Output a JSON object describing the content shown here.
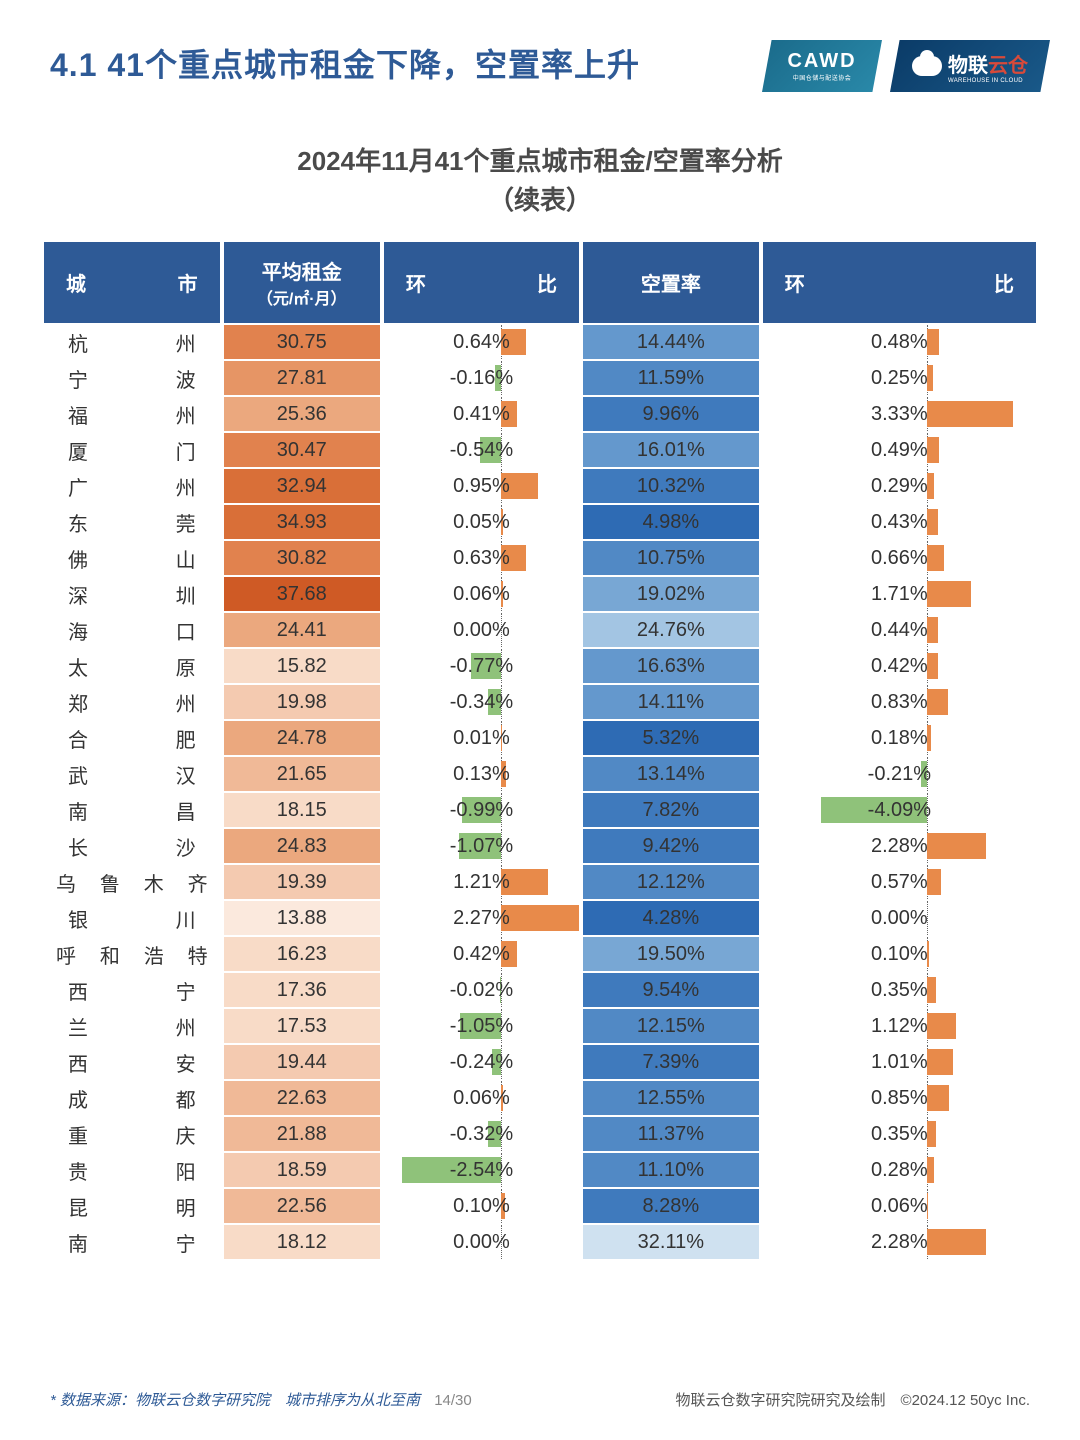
{
  "header": {
    "title": "4.1 41个重点城市租金下降，空置率上升",
    "logo_cawd": "CAWD",
    "logo_cawd_sub": "中国仓储与配送协会",
    "logo_wlyc_a": "物联",
    "logo_wlyc_b": "云仓",
    "logo_wlyc_sub": "WAREHOUSE IN CLOUD"
  },
  "subtitle_line1": "2024年11月41个重点城市租金/空置率分析",
  "subtitle_line2": "（续表）",
  "columns": {
    "city_a": "城",
    "city_b": "市",
    "rent": "平均租金",
    "rent_unit": "（元/㎡·月）",
    "mom_a": "环",
    "mom_b": "比",
    "vacancy": "空置率"
  },
  "styling": {
    "header_bg": "#2e5a96",
    "header_fg": "#ffffff",
    "text_color": "#333333",
    "bar_pos_color": "#e88a4a",
    "bar_neg_color": "#8fc27a",
    "rent_scale": {
      "min": 13,
      "max": 38
    },
    "vacancy_scale": {
      "min": 4,
      "max": 33
    },
    "rent_palette": [
      "#fbe9dd",
      "#f8dbc7",
      "#f4cab0",
      "#f0b997",
      "#eba87e",
      "#e69565",
      "#e1824e",
      "#d96f38",
      "#cf5a25"
    ],
    "vacancy_palette": [
      "#cfe1f0",
      "#b9d3ea",
      "#a3c5e3",
      "#8db6dc",
      "#78a7d4",
      "#6498cd",
      "#5189c5",
      "#3f7abd",
      "#2e6bb4"
    ],
    "mom1_zero_pct": 60,
    "mom1_bar_unit_pct": 20,
    "mom2_zero_pct": 60,
    "mom2_bar_unit_pct": 9.5
  },
  "rows": [
    {
      "city": "杭州",
      "rent": 30.75,
      "mom1": 0.64,
      "vacancy": 14.44,
      "mom2": 0.48
    },
    {
      "city": "宁波",
      "rent": 27.81,
      "mom1": -0.16,
      "vacancy": 11.59,
      "mom2": 0.25
    },
    {
      "city": "福州",
      "rent": 25.36,
      "mom1": 0.41,
      "vacancy": 9.96,
      "mom2": 3.33
    },
    {
      "city": "厦门",
      "rent": 30.47,
      "mom1": -0.54,
      "vacancy": 16.01,
      "mom2": 0.49
    },
    {
      "city": "广州",
      "rent": 32.94,
      "mom1": 0.95,
      "vacancy": 10.32,
      "mom2": 0.29
    },
    {
      "city": "东莞",
      "rent": 34.93,
      "mom1": 0.05,
      "vacancy": 4.98,
      "mom2": 0.43
    },
    {
      "city": "佛山",
      "rent": 30.82,
      "mom1": 0.63,
      "vacancy": 10.75,
      "mom2": 0.66
    },
    {
      "city": "深圳",
      "rent": 37.68,
      "mom1": 0.06,
      "vacancy": 19.02,
      "mom2": 1.71
    },
    {
      "city": "海口",
      "rent": 24.41,
      "mom1": 0.0,
      "vacancy": 24.76,
      "mom2": 0.44
    },
    {
      "city": "太原",
      "rent": 15.82,
      "mom1": -0.77,
      "vacancy": 16.63,
      "mom2": 0.42
    },
    {
      "city": "郑州",
      "rent": 19.98,
      "mom1": -0.34,
      "vacancy": 14.11,
      "mom2": 0.83
    },
    {
      "city": "合肥",
      "rent": 24.78,
      "mom1": 0.01,
      "vacancy": 5.32,
      "mom2": 0.18
    },
    {
      "city": "武汉",
      "rent": 21.65,
      "mom1": 0.13,
      "vacancy": 13.14,
      "mom2": -0.21
    },
    {
      "city": "南昌",
      "rent": 18.15,
      "mom1": -0.99,
      "vacancy": 7.82,
      "mom2": -4.09
    },
    {
      "city": "长沙",
      "rent": 24.83,
      "mom1": -1.07,
      "vacancy": 9.42,
      "mom2": 2.28
    },
    {
      "city": "乌鲁木齐",
      "rent": 19.39,
      "mom1": 1.21,
      "vacancy": 12.12,
      "mom2": 0.57
    },
    {
      "city": "银川",
      "rent": 13.88,
      "mom1": 2.27,
      "vacancy": 4.28,
      "mom2": 0.0
    },
    {
      "city": "呼和浩特",
      "rent": 16.23,
      "mom1": 0.42,
      "vacancy": 19.5,
      "mom2": 0.1
    },
    {
      "city": "西宁",
      "rent": 17.36,
      "mom1": -0.02,
      "vacancy": 9.54,
      "mom2": 0.35
    },
    {
      "city": "兰州",
      "rent": 17.53,
      "mom1": -1.05,
      "vacancy": 12.15,
      "mom2": 1.12
    },
    {
      "city": "西安",
      "rent": 19.44,
      "mom1": -0.24,
      "vacancy": 7.39,
      "mom2": 1.01
    },
    {
      "city": "成都",
      "rent": 22.63,
      "mom1": 0.06,
      "vacancy": 12.55,
      "mom2": 0.85
    },
    {
      "city": "重庆",
      "rent": 21.88,
      "mom1": -0.32,
      "vacancy": 11.37,
      "mom2": 0.35
    },
    {
      "city": "贵阳",
      "rent": 18.59,
      "mom1": -2.54,
      "vacancy": 11.1,
      "mom2": 0.28
    },
    {
      "city": "昆明",
      "rent": 22.56,
      "mom1": 0.1,
      "vacancy": 8.28,
      "mom2": 0.06
    },
    {
      "city": "南宁",
      "rent": 18.12,
      "mom1": 0.0,
      "vacancy": 32.11,
      "mom2": 2.28
    }
  ],
  "footer": {
    "source": "* 数据来源：物联云仓数字研究院　城市排序为从北至南",
    "page": "14/30",
    "credit": "物联云仓数字研究院研究及绘制　©2024.12 50yc Inc."
  }
}
